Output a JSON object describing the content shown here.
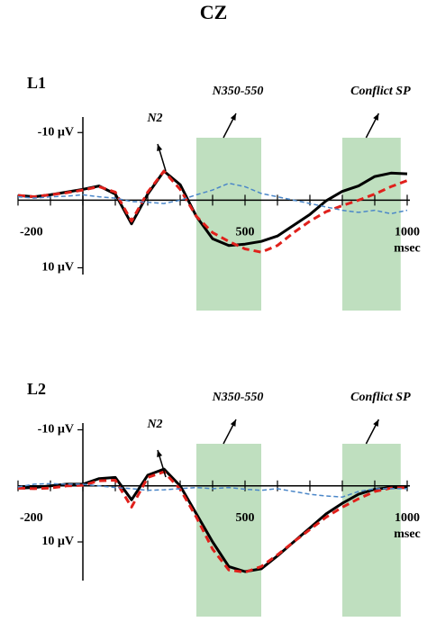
{
  "title": "CZ",
  "chart_data": [
    {
      "type": "line",
      "title": "L1",
      "peak_label": "N2",
      "x_label": "msec",
      "x": [
        -200,
        -150,
        -100,
        -50,
        0,
        50,
        100,
        150,
        200,
        250,
        300,
        350,
        400,
        450,
        500,
        550,
        600,
        650,
        700,
        750,
        800,
        850,
        900,
        950,
        1000
      ],
      "xlim": [
        -200,
        1000
      ],
      "xticks": [
        -200,
        500,
        1000
      ],
      "xminor": [
        -100,
        0,
        100,
        200,
        300,
        400,
        600,
        700,
        800,
        900
      ],
      "ylim": [
        11,
        -12.3
      ],
      "yticks": [
        {
          "value": -10,
          "label": "-10 µV"
        },
        {
          "value": 10,
          "label": "10 µV"
        }
      ],
      "windows": [
        {
          "label": "N350-550",
          "range": [
            350,
            550
          ],
          "color": "#bfdfbf"
        },
        {
          "label": "Conflict SP",
          "range": [
            800,
            980
          ],
          "color": "#bfdfbf"
        }
      ],
      "series": [
        {
          "color": "#000000",
          "dash": "none",
          "width": 3,
          "values": [
            -0.7,
            -0.5,
            -0.8,
            -1.2,
            -1.6,
            -2.1,
            -0.9,
            3.5,
            -0.9,
            -4.3,
            -2.3,
            2.4,
            5.7,
            6.7,
            6.5,
            6.1,
            5.3,
            3.7,
            2.1,
            0.1,
            -1.3,
            -2.1,
            -3.5,
            -4.0,
            -3.9
          ]
        },
        {
          "color": "#e0201b",
          "dash": "8 5",
          "width": 3,
          "values": [
            -0.7,
            -0.5,
            -0.8,
            -1.1,
            -1.5,
            -2.0,
            -1.2,
            3.1,
            -1.2,
            -4.3,
            -1.6,
            2.4,
            4.8,
            6.1,
            7.2,
            7.7,
            6.7,
            4.8,
            3.1,
            1.7,
            0.8,
            0,
            -0.9,
            -2.0,
            -2.9
          ]
        },
        {
          "color": "#4a86c8",
          "dash": "5 3",
          "width": 1.5,
          "values": [
            -0.5,
            -0.3,
            -0.5,
            -0.6,
            -0.8,
            -0.5,
            -0.3,
            0.2,
            0.3,
            0.5,
            0.0,
            -0.8,
            -1.5,
            -2.5,
            -2.0,
            -1.0,
            -0.5,
            0,
            0.5,
            1.0,
            1.5,
            1.8,
            1.5,
            2.0,
            1.5
          ]
        }
      ]
    },
    {
      "type": "line",
      "title": "L2",
      "peak_label": "N2",
      "x_label": "msec",
      "x": [
        -200,
        -150,
        -100,
        -50,
        0,
        50,
        100,
        150,
        200,
        250,
        300,
        350,
        400,
        450,
        500,
        550,
        600,
        650,
        700,
        750,
        800,
        850,
        900,
        950,
        1000
      ],
      "xlim": [
        -200,
        1000
      ],
      "xticks": [
        -200,
        500,
        1000
      ],
      "xminor": [
        -100,
        0,
        100,
        200,
        300,
        400,
        600,
        700,
        800,
        900
      ],
      "ylim": [
        16.9,
        -11.2
      ],
      "yticks": [
        {
          "value": -10,
          "label": "-10 µV"
        },
        {
          "value": 10,
          "label": "10 µV"
        }
      ],
      "windows": [
        {
          "label": "N350-550",
          "range": [
            350,
            550
          ],
          "color": "#bfdfbf"
        },
        {
          "label": "Conflict SP",
          "range": [
            800,
            980
          ],
          "color": "#bfdfbf"
        }
      ],
      "series": [
        {
          "color": "#000000",
          "dash": "none",
          "width": 3,
          "values": [
            0.4,
            0.3,
            0,
            -0.3,
            -0.3,
            -1.3,
            -1.5,
            2.5,
            -1.9,
            -3.0,
            0,
            5,
            10,
            14.4,
            15.3,
            14.8,
            12.5,
            10,
            7.5,
            5,
            3.1,
            1.5,
            0.6,
            0.3,
            0.3
          ]
        },
        {
          "color": "#e0201b",
          "dash": "8 5",
          "width": 3,
          "values": [
            0.4,
            0.5,
            0.4,
            0,
            -0.1,
            -0.9,
            -1,
            3.8,
            -1.5,
            -2.5,
            0.6,
            5.6,
            11.3,
            15,
            15.4,
            14.4,
            12.3,
            10,
            7.8,
            5.6,
            3.8,
            2.3,
            1,
            0.4,
            0.3
          ]
        },
        {
          "color": "#4a86c8",
          "dash": "5 3",
          "width": 1.5,
          "values": [
            0.2,
            -0.3,
            -0.4,
            -0.3,
            -0.3,
            0,
            0.3,
            0.5,
            0.8,
            0.7,
            0.5,
            0.3,
            0.5,
            0.3,
            0.6,
            0.8,
            0.5,
            1.0,
            1.5,
            1.8,
            2.0,
            1.0,
            0.5,
            0.5,
            0.5
          ]
        }
      ]
    }
  ]
}
